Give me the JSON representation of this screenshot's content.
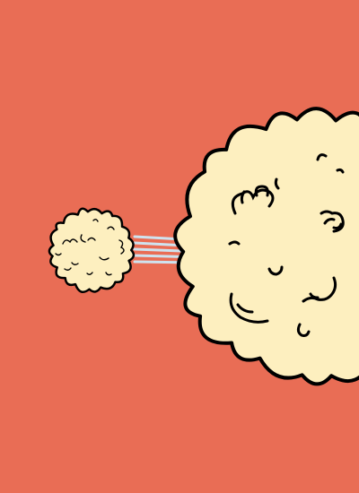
{
  "scene": {
    "background_color": "#e96d55",
    "cloud_fill": "#fdefbf",
    "cloud_outline": "#000000",
    "speed_line_color": "#cfe3ef",
    "elements": [
      "small-cloud-puff",
      "speed-lines",
      "large-cloud-puff"
    ]
  }
}
